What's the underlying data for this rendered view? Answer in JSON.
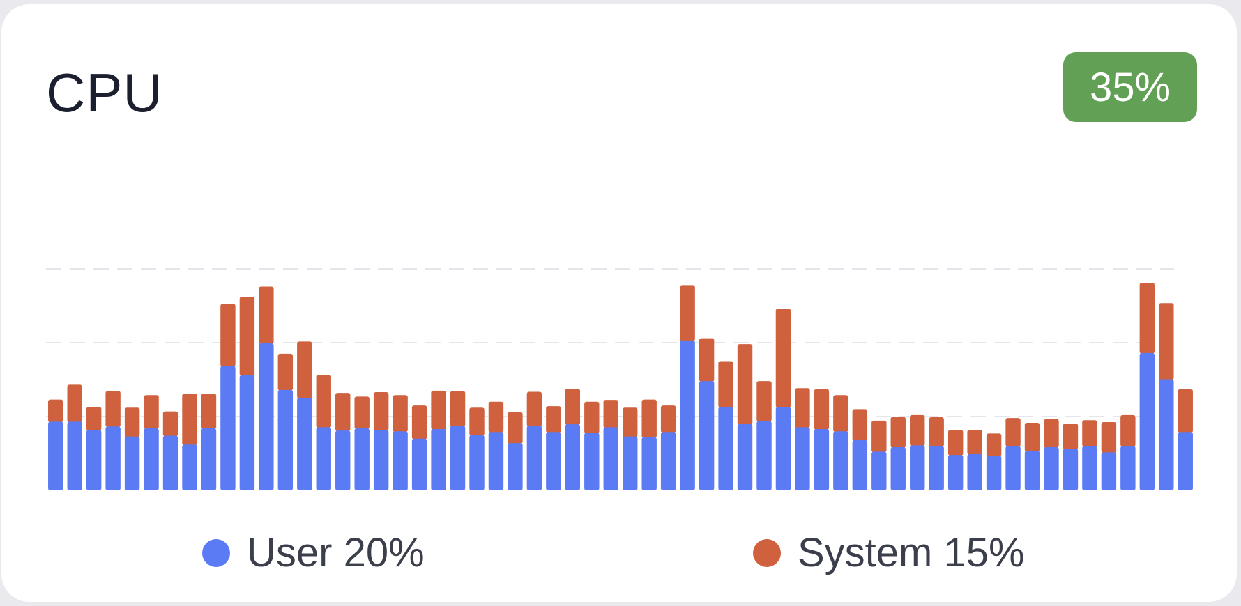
{
  "card": {
    "title": "CPU",
    "badge": "35%"
  },
  "colors": {
    "user": "#5b7bf4",
    "system": "#d0613f",
    "badge_bg": "#62a055",
    "grid": "#e4e6eb"
  },
  "legend": {
    "user_label": "User 20%",
    "system_label": "System 15%"
  },
  "chart_data": {
    "type": "bar",
    "stacked": true,
    "grid": true,
    "ylim": [
      0,
      100
    ],
    "gridlines": [
      20,
      40,
      60
    ],
    "series": [
      {
        "name": "User",
        "values": [
          18.6,
          18.6,
          16.4,
          17.3,
          14.6,
          16.8,
          14.8,
          12.4,
          16.8,
          33.7,
          31.2,
          39.8,
          27.2,
          25.1,
          17.1,
          16.2,
          16.8,
          16.4,
          16.0,
          14.0,
          16.6,
          17.5,
          15.0,
          15.8,
          12.8,
          17.5,
          15.8,
          17.9,
          15.6,
          17.1,
          14.6,
          14.4,
          15.8,
          40.6,
          29.6,
          22.6,
          18.0,
          18.8,
          22.6,
          17.1,
          16.6,
          16.0,
          13.6,
          10.5,
          11.7,
          12.2,
          12.0,
          9.6,
          9.8,
          9.4,
          12.0,
          10.7,
          11.7,
          11.3,
          12.0,
          10.3,
          12.0,
          37.2,
          30.1,
          15.8
        ]
      },
      {
        "name": "System",
        "values": [
          6.0,
          10.0,
          6.2,
          9.6,
          7.8,
          9.0,
          6.6,
          13.8,
          9.4,
          16.8,
          21.2,
          15.4,
          9.8,
          15.2,
          14.2,
          10.2,
          8.6,
          10.2,
          9.8,
          9.0,
          10.4,
          9.4,
          7.4,
          8.2,
          8.4,
          9.2,
          7.0,
          9.6,
          8.4,
          7.4,
          7.8,
          10.2,
          7.2,
          15.0,
          11.6,
          12.4,
          21.6,
          10.8,
          26.6,
          10.6,
          10.8,
          9.8,
          8.4,
          8.4,
          8.2,
          8.2,
          7.8,
          6.8,
          6.6,
          6.0,
          7.6,
          7.6,
          7.6,
          6.8,
          7.0,
          8.2,
          8.4,
          19.0,
          20.6,
          11.6
        ]
      }
    ]
  }
}
